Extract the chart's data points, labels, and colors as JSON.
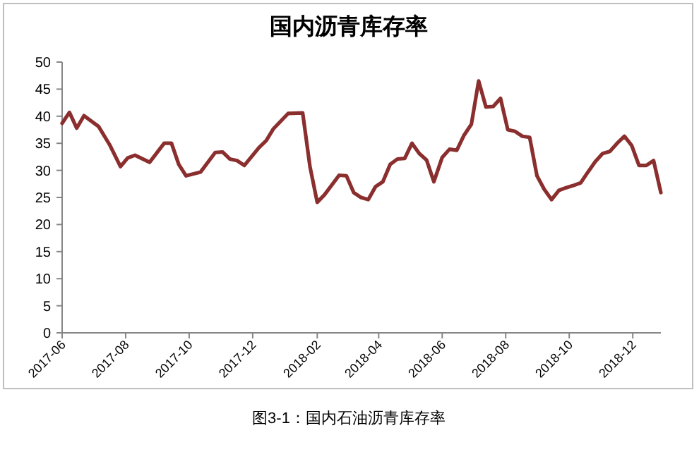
{
  "chart_data": {
    "type": "line",
    "title": "国内沥青库存率",
    "annotations": [
      "图3-1：国内石油沥青库存率"
    ],
    "x": [
      "2017-06-01",
      "2017-06-08",
      "2017-06-15",
      "2017-06-22",
      "2017-07-06",
      "2017-07-17",
      "2017-07-27",
      "2017-08-03",
      "2017-08-10",
      "2017-08-24",
      "2017-09-07",
      "2017-09-14",
      "2017-09-21",
      "2017-09-28",
      "2017-10-12",
      "2017-10-26",
      "2017-11-02",
      "2017-11-09",
      "2017-11-16",
      "2017-11-23",
      "2017-12-07",
      "2017-12-14",
      "2017-12-21",
      "2018-01-04",
      "2018-01-18",
      "2018-01-25",
      "2018-02-01",
      "2018-02-08",
      "2018-02-22",
      "2018-03-01",
      "2018-03-08",
      "2018-03-15",
      "2018-03-22",
      "2018-03-29",
      "2018-04-05",
      "2018-04-12",
      "2018-04-19",
      "2018-04-26",
      "2018-05-03",
      "2018-05-10",
      "2018-05-17",
      "2018-05-24",
      "2018-06-01",
      "2018-06-08",
      "2018-06-15",
      "2018-06-22",
      "2018-06-29",
      "2018-07-06",
      "2018-07-13",
      "2018-07-20",
      "2018-07-27",
      "2018-08-03",
      "2018-08-10",
      "2018-08-17",
      "2018-08-24",
      "2018-08-31",
      "2018-09-07",
      "2018-09-14",
      "2018-09-21",
      "2018-09-28",
      "2018-10-05",
      "2018-10-12",
      "2018-10-19",
      "2018-10-26",
      "2018-11-02",
      "2018-11-09",
      "2018-11-16",
      "2018-11-23",
      "2018-11-30",
      "2018-12-07",
      "2018-12-14",
      "2018-12-21",
      "2018-12-28"
    ],
    "series": [
      {
        "color": "#8b2e2e",
        "values": [
          38.7,
          40.7,
          37.8,
          40.1,
          38.1,
          34.6,
          30.7,
          32.3,
          32.8,
          31.5,
          35.0,
          35.0,
          31.1,
          29.0,
          29.7,
          33.3,
          33.4,
          32.1,
          31.8,
          30.9,
          34.2,
          35.5,
          37.7,
          40.5,
          40.6,
          30.7,
          24.1,
          25.5,
          29.1,
          29.0,
          25.9,
          25.0,
          24.6,
          27.0,
          27.9,
          31.1,
          32.1,
          32.2,
          35.0,
          33.1,
          31.9,
          27.9,
          32.4,
          33.9,
          33.7,
          36.5,
          38.5,
          46.5,
          41.7,
          41.8,
          43.3,
          37.5,
          37.2,
          36.3,
          36.1,
          29.0,
          26.5,
          24.6,
          26.3,
          26.8,
          27.2,
          27.7,
          29.7,
          31.6,
          33.1,
          33.5,
          35.0,
          36.3,
          34.6,
          30.9,
          30.9,
          31.8,
          25.9
        ]
      }
    ],
    "xlim": [
      "2017-06-01",
      "2018-12-28"
    ],
    "xticks": [
      "2017-06",
      "2017-08",
      "2017-10",
      "2017-12",
      "2018-02",
      "2018-04",
      "2018-06",
      "2018-08",
      "2018-10",
      "2018-12"
    ],
    "ylim": [
      0,
      50
    ],
    "yticks": [
      0,
      5,
      10,
      15,
      20,
      25,
      30,
      35,
      40,
      45,
      50
    ],
    "marker": "none",
    "line_style": "solid"
  }
}
